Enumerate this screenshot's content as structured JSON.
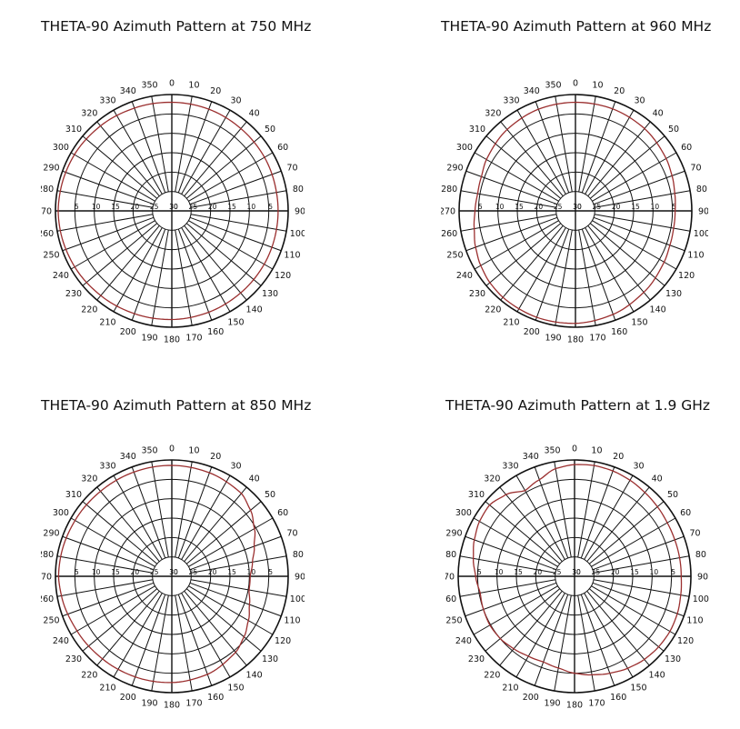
{
  "colors": {
    "grid": "#111111",
    "pattern": "#9b2f2f",
    "background": "#ffffff"
  },
  "chart_data": [
    {
      "type": "polar-line",
      "title": "THETA-90 Azimuth Pattern at 750 MHz",
      "angle_ticks": [
        "0",
        "10",
        "20",
        "30",
        "40",
        "50",
        "60",
        "70",
        "80",
        "90",
        "100",
        "110",
        "120",
        "130",
        "140",
        "150",
        "160",
        "170",
        "180",
        "190",
        "200",
        "210",
        "220",
        "230",
        "240",
        "250",
        "260",
        "270",
        "280",
        "290",
        "300",
        "310",
        "320",
        "330",
        "340",
        "350"
      ],
      "ring_ticks_right": [
        "5",
        "10",
        "15",
        "20",
        "25",
        "30"
      ],
      "ring_ticks_left": [
        "5",
        "10",
        "15",
        "20",
        "25",
        "30"
      ],
      "radial_range": [
        -30,
        0
      ],
      "series": [
        {
          "angles": [
            0,
            20,
            40,
            60,
            80,
            90,
            100,
            120,
            140,
            160,
            180,
            200,
            220,
            240,
            260,
            270,
            280,
            300,
            320,
            340
          ],
          "values": [
            -2,
            -2.1,
            -2.3,
            -2.4,
            -2.6,
            -2.6,
            -2.6,
            -2.5,
            -2.4,
            -2.2,
            -2,
            -1.8,
            -1.5,
            -1.1,
            -0.8,
            -0.7,
            -0.8,
            -1,
            -1.4,
            -1.8
          ]
        }
      ]
    },
    {
      "type": "polar-line",
      "title": "THETA-90 Azimuth Pattern at 960 MHz",
      "angle_ticks": [
        "0",
        "10",
        "20",
        "30",
        "40",
        "50",
        "60",
        "70",
        "80",
        "90",
        "100",
        "110",
        "120",
        "130",
        "140",
        "150",
        "160",
        "170",
        "180",
        "190",
        "200",
        "210",
        "220",
        "230",
        "240",
        "250",
        "260",
        "270",
        "280",
        "290",
        "300",
        "310",
        "320",
        "330",
        "340",
        "350"
      ],
      "ring_ticks_right": [
        "5",
        "10",
        "15",
        "20",
        "25",
        "30"
      ],
      "ring_ticks_left": [
        "5",
        "10",
        "15",
        "20",
        "25",
        "30"
      ],
      "radial_range": [
        -30,
        0
      ],
      "series": [
        {
          "angles": [
            0,
            20,
            40,
            60,
            70,
            80,
            90,
            100,
            110,
            120,
            140,
            160,
            180,
            200,
            220,
            230,
            240,
            250,
            260,
            270,
            280,
            290,
            300,
            320,
            340
          ],
          "values": [
            -2,
            -2,
            -2.3,
            -3,
            -3.5,
            -4,
            -4.3,
            -4.3,
            -4.1,
            -3.6,
            -2.6,
            -1.6,
            -1,
            -0.8,
            -0.9,
            -1.2,
            -1.8,
            -2.6,
            -3.5,
            -4.1,
            -4.4,
            -4.2,
            -3.5,
            -2.6,
            -2.1
          ]
        }
      ]
    },
    {
      "type": "polar-line",
      "title": "THETA-90 Azimuth Pattern at 850 MHz",
      "angle_ticks": [
        "0",
        "10",
        "20",
        "30",
        "40",
        "50",
        "60",
        "70",
        "80",
        "90",
        "100",
        "110",
        "120",
        "130",
        "140",
        "150",
        "160",
        "170",
        "180",
        "190",
        "200",
        "210",
        "220",
        "230",
        "240",
        "250",
        "260",
        "270",
        "280",
        "290",
        "300",
        "310",
        "320",
        "330",
        "340",
        "350"
      ],
      "ring_ticks_right": [
        "5",
        "10",
        "15",
        "20",
        "25",
        "30"
      ],
      "ring_ticks_left": [
        "5",
        "10",
        "15",
        "20",
        "25",
        "30"
      ],
      "radial_range": [
        -30,
        0
      ],
      "series": [
        {
          "angles": [
            0,
            20,
            40,
            50,
            60,
            70,
            80,
            90,
            100,
            110,
            120,
            130,
            140,
            160,
            180,
            200,
            220,
            240,
            260,
            270,
            280,
            300,
            320,
            340
          ],
          "values": [
            -1.4,
            -1.6,
            -2.1,
            -3.5,
            -5.4,
            -7.4,
            -8.9,
            -9.8,
            -9.8,
            -8.7,
            -7.2,
            -5.7,
            -4.4,
            -3.1,
            -2.6,
            -2.4,
            -2.2,
            -1.8,
            -1.1,
            -0.8,
            -0.9,
            -1.2,
            -1.4,
            -1.4
          ]
        }
      ]
    },
    {
      "type": "polar-line",
      "title": "THETA-90 Azimuth Pattern at 1.9 GHz",
      "angle_ticks": [
        "0",
        "10",
        "20",
        "30",
        "40",
        "50",
        "60",
        "70",
        "80",
        "90",
        "100",
        "110",
        "120",
        "130",
        "140",
        "150",
        "160",
        "170",
        "180",
        "190",
        "200",
        "210",
        "220",
        "230",
        "240",
        "250",
        "260",
        "270",
        "280",
        "290",
        "300",
        "310",
        "320",
        "330",
        "340",
        "350"
      ],
      "ring_ticks_right": [
        "5",
        "10",
        "15",
        "20",
        "25",
        "30"
      ],
      "ring_ticks_left": [
        "5",
        "10",
        "15",
        "20",
        "25",
        "30"
      ],
      "radial_range": [
        -30,
        0
      ],
      "series": [
        {
          "angles": [
            0,
            10,
            20,
            30,
            40,
            50,
            60,
            70,
            80,
            90,
            100,
            110,
            120,
            130,
            140,
            150,
            160,
            170,
            180,
            190,
            200,
            210,
            220,
            230,
            240,
            250,
            260,
            270,
            280,
            290,
            300,
            310,
            320,
            330,
            340,
            350
          ],
          "values": [
            -1.2,
            -1,
            -1.1,
            -1.4,
            -1.8,
            -2.1,
            -2.4,
            -2.5,
            -2.5,
            -2.5,
            -2.2,
            -1.8,
            -1.6,
            -1.7,
            -2,
            -2.6,
            -3.4,
            -4.2,
            -5,
            -6,
            -6.5,
            -6.2,
            -5.6,
            -5,
            -4.8,
            -5,
            -5.3,
            -4.5,
            -3.5,
            -2.5,
            -1.7,
            -1.4,
            -2.5,
            -4.5,
            -3.5,
            -1.8
          ]
        }
      ]
    }
  ]
}
